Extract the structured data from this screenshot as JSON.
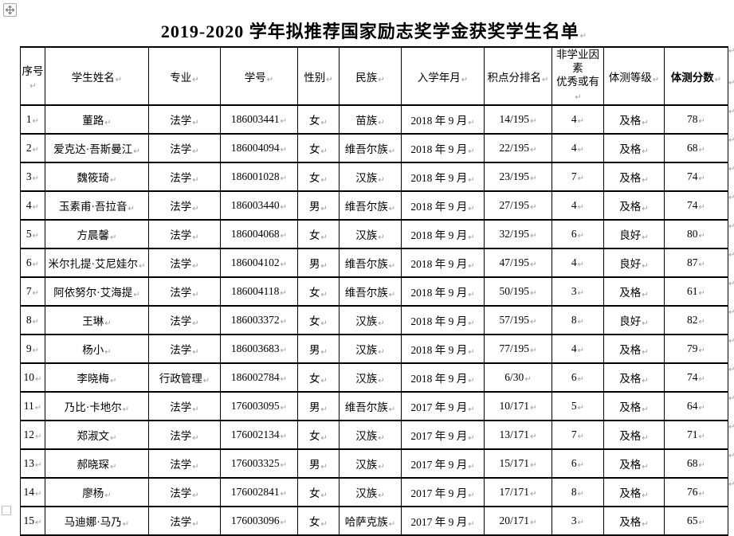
{
  "document": {
    "title": "2019-2020 学年拟推荐国家励志奖学金获奖学生名单"
  },
  "marks": {
    "end_of_cell": "↵"
  },
  "table": {
    "headers": [
      "序号",
      "学生姓名",
      "专业",
      "学号",
      "性别",
      "民族",
      "入学年月",
      "积点分排名",
      "非学业因素\n优秀或有",
      "体测等级",
      "体测分数"
    ],
    "rows": [
      [
        "1",
        "董路",
        "法学",
        "186003441",
        "女",
        "苗族",
        "2018 年 9 月",
        "14/195",
        "4",
        "及格",
        "78"
      ],
      [
        "2",
        "爱克达·吾斯曼江",
        "法学",
        "186004094",
        "女",
        "维吾尔族",
        "2018 年 9 月",
        "22/195",
        "4",
        "及格",
        "68"
      ],
      [
        "3",
        "魏筱琦",
        "法学",
        "186001028",
        "女",
        "汉族",
        "2018 年 9 月",
        "23/195",
        "7",
        "及格",
        "74"
      ],
      [
        "4",
        "玉素甫·吾拉音",
        "法学",
        "186003440",
        "男",
        "维吾尔族",
        "2018 年 9 月",
        "27/195",
        "4",
        "及格",
        "74"
      ],
      [
        "5",
        "方晨馨",
        "法学",
        "186004068",
        "女",
        "汉族",
        "2018 年 9 月",
        "32/195",
        "6",
        "良好",
        "80"
      ],
      [
        "6",
        "米尔扎提·艾尼娃尔",
        "法学",
        "186004102",
        "男",
        "维吾尔族",
        "2018 年 9 月",
        "47/195",
        "4",
        "良好",
        "87"
      ],
      [
        "7",
        "阿依努尔·艾海提",
        "法学",
        "186004118",
        "女",
        "维吾尔族",
        "2018 年 9 月",
        "50/195",
        "3",
        "及格",
        "61"
      ],
      [
        "8",
        "王琳",
        "法学",
        "186003372",
        "女",
        "汉族",
        "2018 年 9 月",
        "57/195",
        "8",
        "良好",
        "82"
      ],
      [
        "9",
        "杨小",
        "法学",
        "186003683",
        "男",
        "汉族",
        "2018 年 9 月",
        "77/195",
        "4",
        "及格",
        "79"
      ],
      [
        "10",
        "李晓梅",
        "行政管理",
        "186002784",
        "女",
        "汉族",
        "2018 年 9 月",
        "6/30",
        "6",
        "及格",
        "74"
      ],
      [
        "11",
        "乃比·卡地尔",
        "法学",
        "176003095",
        "男",
        "维吾尔族",
        "2017 年 9 月",
        "10/171",
        "5",
        "及格",
        "64"
      ],
      [
        "12",
        "郑淑文",
        "法学",
        "176002134",
        "女",
        "汉族",
        "2017 年 9 月",
        "13/171",
        "7",
        "及格",
        "71"
      ],
      [
        "13",
        "郝晓琛",
        "法学",
        "176003325",
        "男",
        "汉族",
        "2017 年 9 月",
        "15/171",
        "6",
        "及格",
        "68"
      ],
      [
        "14",
        "廖杨",
        "法学",
        "176002841",
        "女",
        "汉族",
        "2017 年 9 月",
        "17/171",
        "8",
        "及格",
        "76"
      ],
      [
        "15",
        "马迪娜·马乃",
        "法学",
        "176003096",
        "女",
        "哈萨克族",
        "2017 年 9 月",
        "20/171",
        "3",
        "及格",
        "65"
      ]
    ]
  }
}
